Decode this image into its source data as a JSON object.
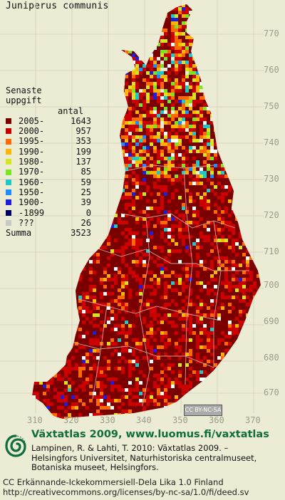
{
  "title": "Juniperus communis",
  "legend": {
    "header1": "Senaste",
    "header2": "uppgift",
    "count_header": "antal",
    "rows": [
      {
        "label": "2005-",
        "count": "1643",
        "color": "#7a0000"
      },
      {
        "label": "2000-",
        "count": "957",
        "color": "#cc0000"
      },
      {
        "label": "1995-",
        "count": "353",
        "color": "#ff6a00"
      },
      {
        "label": "1990-",
        "count": "199",
        "color": "#ffb400"
      },
      {
        "label": "1980-",
        "count": "137",
        "color": "#d6e61e"
      },
      {
        "label": "1970-",
        "count": "85",
        "color": "#7ae61e"
      },
      {
        "label": "1960-",
        "count": "59",
        "color": "#1ec8c8"
      },
      {
        "label": "1950-",
        "count": "25",
        "color": "#1e8cff"
      },
      {
        "label": "1900-",
        "count": "39",
        "color": "#1e1edc"
      },
      {
        "label": "-1899",
        "count": "0",
        "color": "#000064"
      },
      {
        "label": "???",
        "count": "26",
        "color": "#c8c8c8"
      }
    ],
    "sum_label": "Summa",
    "sum_count": "3523"
  },
  "axes": {
    "y_ticks": [
      "770",
      "760",
      "750",
      "740",
      "730",
      "720",
      "710",
      "700",
      "690",
      "680",
      "670"
    ],
    "x_ticks": [
      "310",
      "320",
      "330",
      "340",
      "350",
      "360",
      "370"
    ]
  },
  "badge": "CC BY-NC-SA",
  "footer": {
    "title": "Växtatlas 2009, www.luomus.fi/vaxtatlas",
    "ref1": "Lampinen, R. & Lahti, T. 2010: Växtatlas 2009. –",
    "ref2": "Helsingfors Universitet, Naturhistoriska centralmuseet,",
    "ref3": "Botaniska museet, Helsingfors.",
    "license1": "CC Erkännande-Ickekommersiell-Dela Lika 1.0 Finland",
    "license2": "http://creativecommons.org/licenses/by-nc-sa/1.0/fi/deed.sv"
  },
  "colors": {
    "background": "#ecebd3",
    "grid_label": "#9c9c8c",
    "footer_title": "#0f6e3b"
  }
}
